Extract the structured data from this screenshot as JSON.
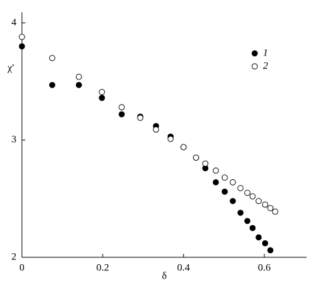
{
  "chart_data": {
    "type": "scatter",
    "x_label": "δ",
    "y_label": "χ′",
    "xlim": [
      0,
      0.705
    ],
    "ylim": [
      2,
      4.09
    ],
    "xticks": [
      0,
      0.2,
      0.4,
      0.6
    ],
    "yticks": [
      2,
      3,
      4
    ],
    "legend": "top-right",
    "series": [
      {
        "name": "1",
        "color": "#000000",
        "filled": true,
        "x": [
          0,
          0.075,
          0.141,
          0.198,
          0.247,
          0.293,
          0.332,
          0.368,
          0.4,
          0.431,
          0.454,
          0.48,
          0.502,
          0.522,
          0.541,
          0.558,
          0.571,
          0.586,
          0.602,
          0.615
        ],
        "values": [
          3.8,
          3.47,
          3.47,
          3.36,
          3.22,
          3.2,
          3.12,
          3.03,
          2.94,
          2.85,
          2.76,
          2.64,
          2.56,
          2.48,
          2.38,
          2.31,
          2.25,
          2.17,
          2.12,
          2.06
        ]
      },
      {
        "name": "2",
        "color": "#000000",
        "filled": false,
        "x": [
          0,
          0.075,
          0.141,
          0.198,
          0.247,
          0.293,
          0.332,
          0.368,
          0.4,
          0.431,
          0.454,
          0.48,
          0.502,
          0.522,
          0.541,
          0.558,
          0.571,
          0.586,
          0.602,
          0.615,
          0.627
        ],
        "values": [
          3.88,
          3.7,
          3.54,
          3.41,
          3.28,
          3.19,
          3.09,
          3.01,
          2.94,
          2.85,
          2.8,
          2.74,
          2.68,
          2.64,
          2.59,
          2.55,
          2.52,
          2.48,
          2.45,
          2.42,
          2.39
        ]
      }
    ]
  }
}
